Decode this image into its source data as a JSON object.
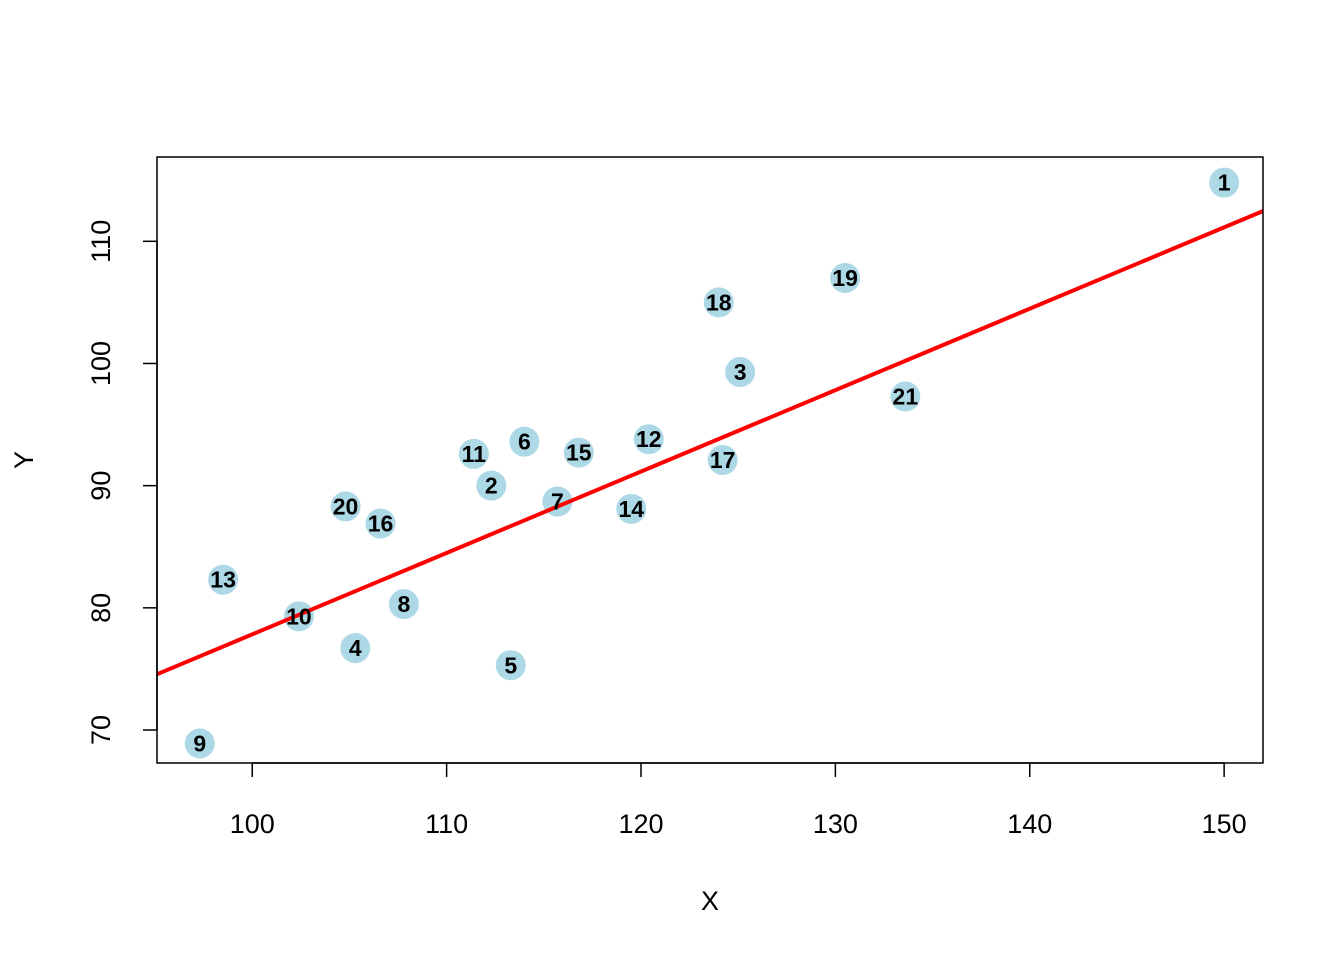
{
  "chart_data": {
    "type": "scatter",
    "title": "",
    "xlabel": "X",
    "ylabel": "Y",
    "xlim": [
      95.1,
      152.0
    ],
    "ylim": [
      67.3,
      116.9
    ],
    "xticks": [
      100,
      110,
      120,
      130,
      140,
      150
    ],
    "yticks": [
      70,
      80,
      90,
      100,
      110
    ],
    "xtick_labels": [
      "100",
      "110",
      "120",
      "130",
      "140",
      "150"
    ],
    "ytick_labels": [
      "70",
      "80",
      "90",
      "100",
      "110"
    ],
    "grid": false,
    "point_color": "#add8e6",
    "line_color": "#ff0000",
    "points": [
      {
        "label": "1",
        "x": 150.0,
        "y": 114.8
      },
      {
        "label": "2",
        "x": 112.3,
        "y": 90.0
      },
      {
        "label": "3",
        "x": 125.1,
        "y": 99.3
      },
      {
        "label": "4",
        "x": 105.3,
        "y": 76.7
      },
      {
        "label": "5",
        "x": 113.3,
        "y": 75.3
      },
      {
        "label": "6",
        "x": 114.0,
        "y": 93.6
      },
      {
        "label": "7",
        "x": 115.7,
        "y": 88.7
      },
      {
        "label": "8",
        "x": 107.8,
        "y": 80.3
      },
      {
        "label": "9",
        "x": 97.3,
        "y": 68.9
      },
      {
        "label": "10",
        "x": 102.4,
        "y": 79.3
      },
      {
        "label": "11",
        "x": 111.4,
        "y": 92.6
      },
      {
        "label": "12",
        "x": 120.4,
        "y": 93.8
      },
      {
        "label": "13",
        "x": 98.5,
        "y": 82.3
      },
      {
        "label": "14",
        "x": 119.5,
        "y": 88.1
      },
      {
        "label": "15",
        "x": 116.8,
        "y": 92.7
      },
      {
        "label": "16",
        "x": 106.6,
        "y": 86.9
      },
      {
        "label": "17",
        "x": 124.2,
        "y": 92.1
      },
      {
        "label": "18",
        "x": 124.0,
        "y": 105.0
      },
      {
        "label": "19",
        "x": 130.5,
        "y": 107.0
      },
      {
        "label": "20",
        "x": 104.8,
        "y": 88.3
      },
      {
        "label": "21",
        "x": 133.6,
        "y": 97.3
      }
    ],
    "regression_line": {
      "intercept": 11.2,
      "slope": 0.6663
    }
  }
}
